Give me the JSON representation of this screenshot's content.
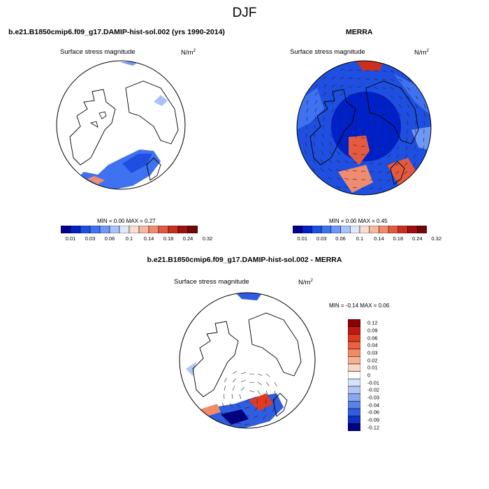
{
  "title": "DJF",
  "panels": [
    {
      "id": "model",
      "heading": "b.e21.B1850cmip6.f09_g17.DAMIP-hist-sol.002 (yrs 1990-2014)",
      "variable": "Surface stress magnitude",
      "units_base": "N/m",
      "units_exp": "2",
      "minmax": "MIN =   0.00 MAX =   0.27",
      "colorbar_labels": [
        "0.01",
        "0.03",
        "0.06",
        "0.1",
        "0.14",
        "0.18",
        "0.24",
        "0.32"
      ]
    },
    {
      "id": "obs",
      "heading": "MERRA",
      "variable": "Surface stress magnitude",
      "units_base": "N/m",
      "units_exp": "2",
      "minmax": "MIN =   0.00 MAX =   0.45",
      "colorbar_labels": [
        "0.01",
        "0.03",
        "0.06",
        "0.1",
        "0.14",
        "0.18",
        "0.24",
        "0.32"
      ]
    },
    {
      "id": "diff",
      "heading": "b.e21.B1850cmip6.f09_g17.DAMIP-hist-sol.002 - MERRA",
      "variable": "Surface stress magnitude",
      "units_base": "N/m",
      "units_exp": "2",
      "minmax": "MIN =  -0.14 MAX =   0.06",
      "colorbar_labels": [
        "0.12",
        "0.09",
        "0.06",
        "0.04",
        "0.03",
        "0.02",
        "0.01",
        "0",
        "-0.01",
        "-0.02",
        "-0.03",
        "-0.04",
        "-0.06",
        "-0.09",
        "-0.12"
      ]
    }
  ],
  "colors": {
    "abs_scale": [
      "#00008b",
      "#0020c8",
      "#1e4fe0",
      "#3f72f0",
      "#6f97f5",
      "#a8c3f8",
      "#dfe8fb",
      "#f8ddd0",
      "#f5b8a0",
      "#ef8c70",
      "#e45a40",
      "#c93020",
      "#a01010",
      "#700808"
    ],
    "diff_scale": [
      "#8b0000",
      "#c01a10",
      "#e03a20",
      "#ee6040",
      "#f28a6a",
      "#f6b094",
      "#fad6c4",
      "#ffffff",
      "#d6e2fa",
      "#b0c6f6",
      "#8aa6f0",
      "#5a82e8",
      "#2f5ce0",
      "#1030c0",
      "#000080"
    ]
  }
}
